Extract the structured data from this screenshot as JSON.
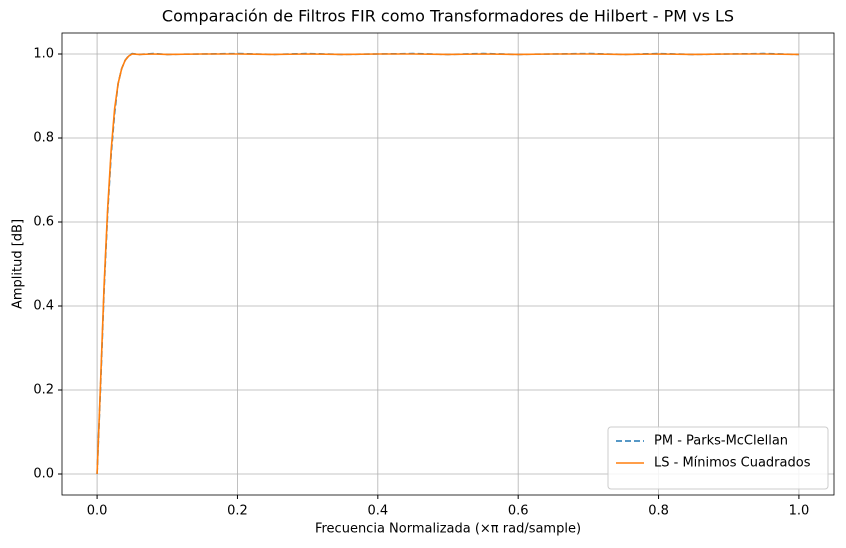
{
  "chart_data": {
    "type": "line",
    "title": "Comparación de Filtros FIR como Transformadores de Hilbert - PM vs LS",
    "x_label": "Frecuencia Normalizada (×π rad/sample)",
    "y_label": "Amplitud [dB]",
    "x": [
      0,
      0.005,
      0.01,
      0.015,
      0.02,
      0.025,
      0.03,
      0.035,
      0.04,
      0.045,
      0.05,
      0.06,
      0.08,
      0.1,
      0.15,
      0.2,
      0.25,
      0.3,
      0.35,
      0.4,
      0.45,
      0.5,
      0.55,
      0.6,
      0.65,
      0.7,
      0.75,
      0.8,
      0.85,
      0.9,
      0.95,
      1.0
    ],
    "series": [
      {
        "name": "PM - Parks-McClellan",
        "color": "#1f77b4",
        "dash": true,
        "values": [
          0,
          0.21,
          0.44,
          0.62,
          0.76,
          0.86,
          0.93,
          0.965,
          0.985,
          0.996,
          1.001,
          0.999,
          1.001,
          0.999,
          1.0,
          1.001,
          0.999,
          1.001,
          0.999,
          1.0,
          1.001,
          0.999,
          1.001,
          0.999,
          1.0,
          1.001,
          0.999,
          1.001,
          0.999,
          1.0,
          1.001,
          0.999
        ]
      },
      {
        "name": "LS - Mínimos Cuadrados",
        "color": "#ff7f0e",
        "dash": false,
        "values": [
          0,
          0.22,
          0.45,
          0.63,
          0.77,
          0.87,
          0.93,
          0.965,
          0.985,
          0.995,
          1.0,
          0.999,
          1.0,
          0.999,
          1.0,
          1.0,
          0.999,
          1.0,
          0.999,
          1.0,
          1.0,
          0.999,
          1.0,
          0.999,
          1.0,
          1.0,
          0.999,
          1.0,
          0.999,
          1.0,
          1.0,
          0.999
        ]
      }
    ],
    "xlim": [
      -0.05,
      1.05
    ],
    "ylim": [
      -0.05,
      1.05
    ],
    "xticks": [
      {
        "value": 0,
        "label": "0.0"
      },
      0.2,
      0.4,
      0.6,
      0.8,
      {
        "value": 1,
        "label": "1.0"
      }
    ],
    "yticks": [
      {
        "value": 0,
        "label": "0.0"
      },
      0.2,
      0.4,
      0.6,
      0.8,
      {
        "value": 1,
        "label": "1.0"
      }
    ],
    "grid": true,
    "legend": "lower right"
  }
}
